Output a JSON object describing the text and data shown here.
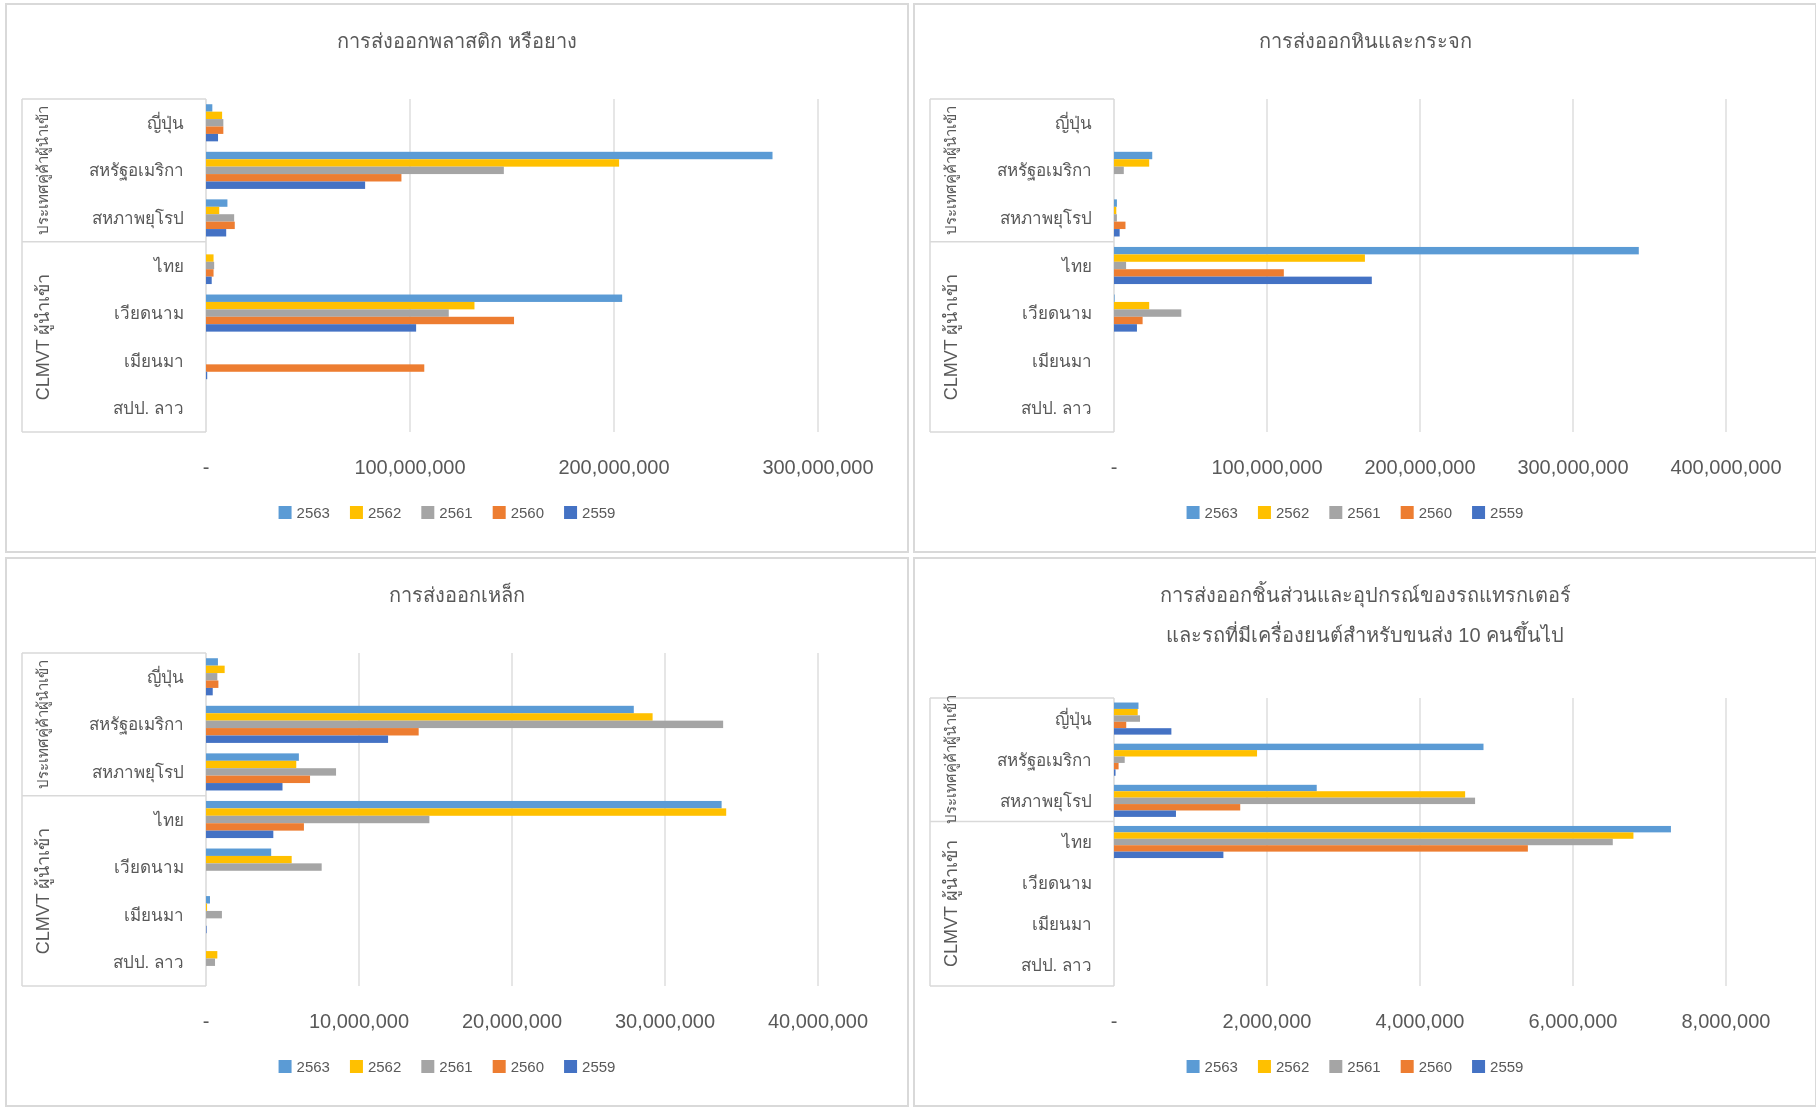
{
  "chart_data": [
    {
      "type": "bar",
      "orientation": "horizontal",
      "title": "การส่งออกพลาสติก หรือยาง",
      "categories": [
        "ญี่ปุ่น",
        "สหรัฐอเมริกา",
        "สหภาพยุโรป",
        "ไทย",
        "เวียดนาม",
        "เมียนมา",
        "สปป. ลาว"
      ],
      "annotations": [
        "ประเทศคู่ค้าผู้นำเข้า",
        "CLMVT ผู้นำเข้า"
      ],
      "series": [
        {
          "name": "2563",
          "color": "#5b9bd5",
          "values": [
            3100000,
            277700000,
            10500000,
            null,
            204000000,
            null,
            null
          ]
        },
        {
          "name": "2562",
          "color": "#ffc000",
          "values": [
            7900000,
            202500000,
            6500000,
            3700000,
            131600000,
            null,
            null
          ]
        },
        {
          "name": "2561",
          "color": "#a5a5a5",
          "values": [
            8500000,
            146000000,
            13800000,
            4000000,
            119000000,
            null,
            null
          ]
        },
        {
          "name": "2560",
          "color": "#ed7d31",
          "values": [
            8500000,
            95800000,
            14100000,
            3700000,
            151000000,
            107000000,
            null
          ]
        },
        {
          "name": "2559",
          "color": "#4472c4",
          "values": [
            5900000,
            78000000,
            9900000,
            2800000,
            103000000,
            600000,
            null
          ]
        }
      ],
      "xlim": [
        0,
        300000000
      ],
      "xticks": [
        {
          "value": 0,
          "label": "-"
        },
        {
          "value": 100000000,
          "label": "100,000,000"
        },
        {
          "value": 200000000,
          "label": "200,000,000"
        },
        {
          "value": 300000000,
          "label": "300,000,000"
        }
      ],
      "grid": "x",
      "legend": "bottom"
    },
    {
      "type": "bar",
      "orientation": "horizontal",
      "title": "การส่งออกหินและกระจก",
      "categories": [
        "ญี่ปุ่น",
        "สหรัฐอเมริกา",
        "สหภาพยุโรป",
        "ไทย",
        "เวียดนาม",
        "เมียนมา",
        "สปป. ลาว"
      ],
      "annotations": [
        "ประเทศคู่ค้าผู้นำเข้า",
        "CLMVT ผู้นำเข้า"
      ],
      "series": [
        {
          "name": "2563",
          "color": "#5b9bd5",
          "values": [
            null,
            25000000,
            1900000,
            343000000,
            400000,
            null,
            null
          ]
        },
        {
          "name": "2562",
          "color": "#ffc000",
          "values": [
            null,
            23000000,
            1500000,
            164000000,
            23000000,
            null,
            null
          ]
        },
        {
          "name": "2561",
          "color": "#a5a5a5",
          "values": [
            null,
            6400000,
            1900000,
            7900000,
            44000000,
            null,
            null
          ]
        },
        {
          "name": "2560",
          "color": "#ed7d31",
          "values": [
            null,
            null,
            7500000,
            111000000,
            18700000,
            null,
            null
          ]
        },
        {
          "name": "2559",
          "color": "#4472c4",
          "values": [
            null,
            null,
            3700000,
            168500000,
            15000000,
            null,
            null
          ]
        }
      ],
      "xlim": [
        0,
        400000000
      ],
      "xticks": [
        {
          "value": 0,
          "label": "-"
        },
        {
          "value": 100000000,
          "label": "100,000,000"
        },
        {
          "value": 200000000,
          "label": "200,000,000"
        },
        {
          "value": 300000000,
          "label": "300,000,000"
        },
        {
          "value": 400000000,
          "label": "400,000,000"
        }
      ],
      "grid": "x",
      "legend": "bottom"
    },
    {
      "type": "bar",
      "orientation": "horizontal",
      "title": "การส่งออกเหล็ก",
      "categories": [
        "ญี่ปุ่น",
        "สหรัฐอเมริกา",
        "สหภาพยุโรป",
        "ไทย",
        "เวียดนาม",
        "เมียนมา",
        "สปป. ลาว"
      ],
      "annotations": [
        "ประเทศคู่ค้าผู้นำเข้า",
        "CLMVT ผู้นำเข้า"
      ],
      "series": [
        {
          "name": "2563",
          "color": "#5b9bd5",
          "values": [
            780000,
            27960000,
            6070000,
            33700000,
            4260000,
            260000,
            null
          ]
        },
        {
          "name": "2562",
          "color": "#ffc000",
          "values": [
            1220000,
            29190000,
            5900000,
            34000000,
            5600000,
            70000,
            740000
          ]
        },
        {
          "name": "2561",
          "color": "#a5a5a5",
          "values": [
            740000,
            33800000,
            8500000,
            14600000,
            7560000,
            1040000,
            590000
          ]
        },
        {
          "name": "2560",
          "color": "#ed7d31",
          "values": [
            810000,
            13900000,
            6800000,
            6400000,
            null,
            null,
            null
          ]
        },
        {
          "name": "2559",
          "color": "#4472c4",
          "values": [
            440000,
            11900000,
            5000000,
            4400000,
            null,
            40000,
            null
          ]
        }
      ],
      "xlim": [
        0,
        40000000
      ],
      "xticks": [
        {
          "value": 0,
          "label": "-"
        },
        {
          "value": 10000000,
          "label": "10,000,000"
        },
        {
          "value": 20000000,
          "label": "20,000,000"
        },
        {
          "value": 30000000,
          "label": "30,000,000"
        },
        {
          "value": 40000000,
          "label": "40,000,000"
        }
      ],
      "grid": "x",
      "legend": "bottom"
    },
    {
      "type": "bar",
      "orientation": "horizontal",
      "title": "การส่งออกชิ้นส่วนและอุปกรณ์ของรถแทรกเตอร์ และรถที่มีเครื่องยนต์สำหรับขนส่ง 10 คนขึ้นไป",
      "categories": [
        "ญี่ปุ่น",
        "สหรัฐอเมริกา",
        "สหภาพยุโรป",
        "ไทย",
        "เวียดนาม",
        "เมียนมา",
        "สปป. ลาว"
      ],
      "annotations": [
        "ประเทศคู่ค้าผู้นำเข้า",
        "CLMVT ผู้นำเข้า"
      ],
      "series": [
        {
          "name": "2563",
          "color": "#5b9bd5",
          "values": [
            320000,
            4830000,
            2650000,
            7280000,
            null,
            null,
            null
          ]
        },
        {
          "name": "2562",
          "color": "#ffc000",
          "values": [
            310000,
            1870000,
            4590000,
            6790000,
            null,
            null,
            null
          ]
        },
        {
          "name": "2561",
          "color": "#a5a5a5",
          "values": [
            340000,
            140000,
            4720000,
            6520000,
            null,
            null,
            null
          ]
        },
        {
          "name": "2560",
          "color": "#ed7d31",
          "values": [
            160000,
            60000,
            1650000,
            5410000,
            null,
            null,
            null
          ]
        },
        {
          "name": "2559",
          "color": "#4472c4",
          "values": [
            750000,
            20000,
            810000,
            1430000,
            null,
            null,
            null
          ]
        }
      ],
      "xlim": [
        0,
        8000000
      ],
      "xticks": [
        {
          "value": 0,
          "label": "-"
        },
        {
          "value": 2000000,
          "label": "2,000,000"
        },
        {
          "value": 4000000,
          "label": "4,000,000"
        },
        {
          "value": 6000000,
          "label": "6,000,000"
        },
        {
          "value": 8000000,
          "label": "8,000,000"
        }
      ],
      "grid": "x",
      "legend": "bottom"
    }
  ]
}
